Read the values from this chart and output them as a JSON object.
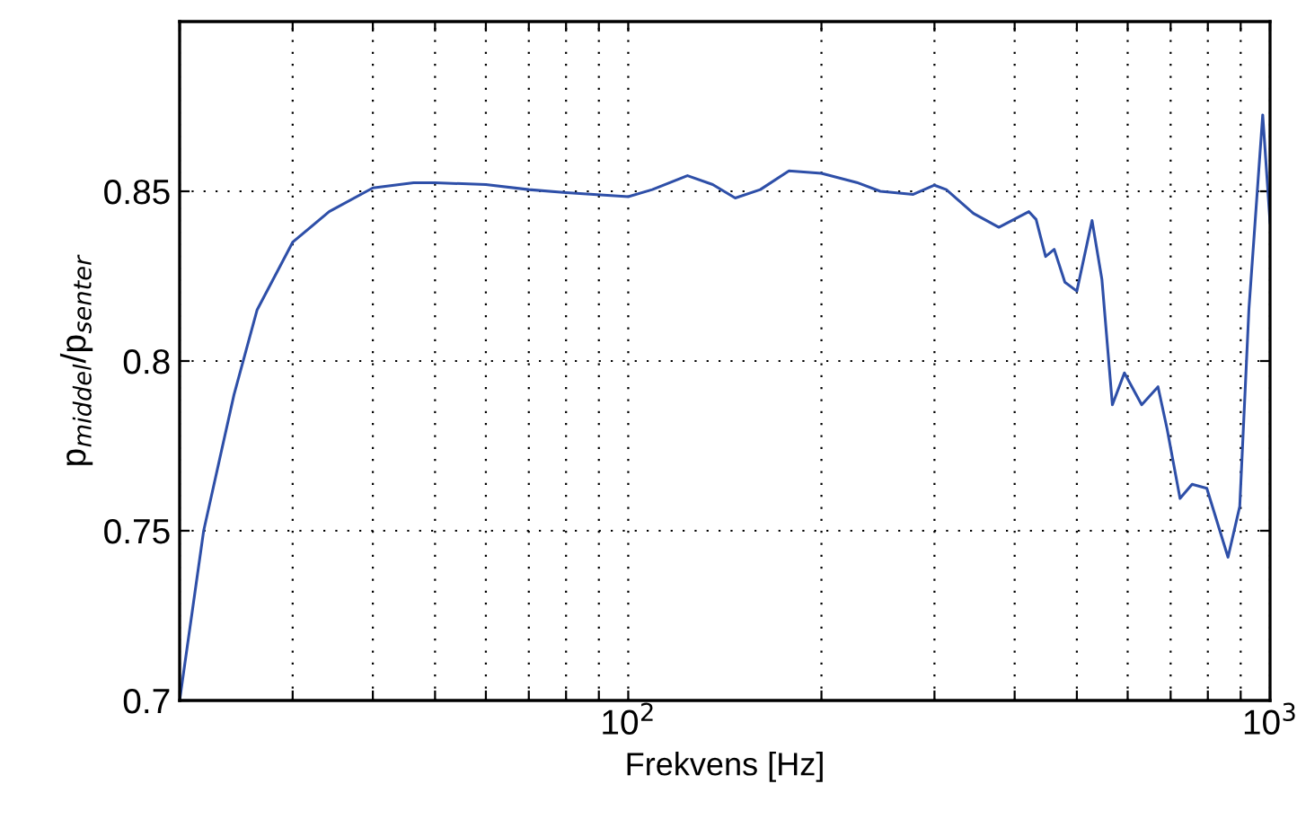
{
  "chart_data": {
    "type": "line",
    "xlabel": "Frekvens [Hz]",
    "ylabel": "p$_{middel}$/p$_{senter}$",
    "log": "x",
    "grid": true,
    "marker": "none",
    "line_style": "solid",
    "xlim": [
      20,
      1000
    ],
    "ylim": [
      0.7,
      0.9
    ],
    "xticks": [
      {
        "value": 20,
        "label": null
      },
      {
        "value": 30,
        "label": null
      },
      {
        "value": 40,
        "label": null
      },
      {
        "value": 50,
        "label": null
      },
      {
        "value": 60,
        "label": null
      },
      {
        "value": 70,
        "label": null
      },
      {
        "value": 80,
        "label": null
      },
      {
        "value": 90,
        "label": null
      },
      {
        "value": 100,
        "label": "10$^{2}$"
      },
      {
        "value": 200,
        "label": null
      },
      {
        "value": 300,
        "label": null
      },
      {
        "value": 400,
        "label": null
      },
      {
        "value": 500,
        "label": null
      },
      {
        "value": 600,
        "label": null
      },
      {
        "value": 700,
        "label": null
      },
      {
        "value": 800,
        "label": null
      },
      {
        "value": 900,
        "label": null
      },
      {
        "value": 1000,
        "label": "10$^{3}$"
      }
    ],
    "yticks": [
      0.7,
      0.75,
      0.8,
      0.85
    ],
    "series": [
      {
        "color": "#2e4fa8",
        "x": [
          20,
          21.8,
          24.3,
          26.4,
          30,
          34.2,
          40,
          46.3,
          50,
          60,
          70,
          80,
          100,
          109,
          123.7,
          135.4,
          146.8,
          160.6,
          178,
          200,
          227,
          247,
          278,
          300,
          313,
          345,
          378,
          421,
          432,
          447,
          461,
          479,
          500,
          528,
          547,
          568,
          593,
          631,
          669,
          691,
          724,
          756,
          797,
          860,
          897,
          927,
          974,
          1000
        ],
        "values": [
          0.7,
          0.75,
          0.79,
          0.815,
          0.835,
          0.844,
          0.851,
          0.8525,
          0.8525,
          0.852,
          0.8505,
          0.8496,
          0.8484,
          0.8505,
          0.8546,
          0.852,
          0.848,
          0.8505,
          0.856,
          0.8553,
          0.8526,
          0.85,
          0.8491,
          0.8518,
          0.8505,
          0.8435,
          0.8394,
          0.844,
          0.8417,
          0.8308,
          0.8329,
          0.8232,
          0.8206,
          0.8414,
          0.8241,
          0.7871,
          0.7965,
          0.7871,
          0.7924,
          0.7801,
          0.7595,
          0.7637,
          0.7625,
          0.7422,
          0.7572,
          0.8153,
          0.8725,
          0.8408
        ]
      }
    ]
  }
}
